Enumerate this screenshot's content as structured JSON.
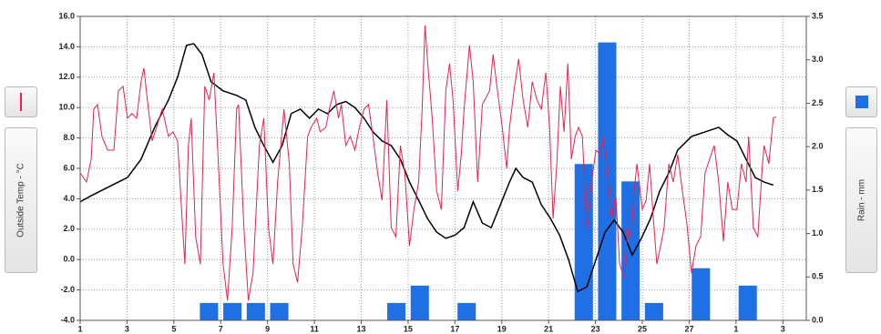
{
  "chart_data": {
    "type": "combo",
    "xlim": [
      0,
      31
    ],
    "xticks": [
      {
        "value": 0,
        "label": "1"
      },
      {
        "value": 2,
        "label": "3"
      },
      {
        "value": 4,
        "label": "5"
      },
      {
        "value": 6,
        "label": "7"
      },
      {
        "value": 8,
        "label": "9"
      },
      {
        "value": 10,
        "label": "11"
      },
      {
        "value": 12,
        "label": "13"
      },
      {
        "value": 14,
        "label": "15"
      },
      {
        "value": 16,
        "label": "17"
      },
      {
        "value": 18,
        "label": "19"
      },
      {
        "value": 20,
        "label": "21"
      },
      {
        "value": 22,
        "label": "23"
      },
      {
        "value": 24,
        "label": "25"
      },
      {
        "value": 26,
        "label": "27"
      },
      {
        "value": 28,
        "label": "1"
      },
      {
        "value": 30,
        "label": "3"
      }
    ],
    "ylim": [
      -4,
      16
    ],
    "yticks": [
      {
        "value": -4,
        "label": "-4.0"
      },
      {
        "value": -2,
        "label": "-2.0"
      },
      {
        "value": 0,
        "label": "0.0"
      },
      {
        "value": 2,
        "label": "2.0"
      },
      {
        "value": 4,
        "label": "4.0"
      },
      {
        "value": 6,
        "label": "6.0"
      },
      {
        "value": 8,
        "label": "8.0"
      },
      {
        "value": 10,
        "label": "10.0"
      },
      {
        "value": 12,
        "label": "12.0"
      },
      {
        "value": 14,
        "label": "14.0"
      },
      {
        "value": 16,
        "label": "16.0"
      }
    ],
    "y2lim": [
      0,
      3.5
    ],
    "y2ticks": [
      {
        "value": 0,
        "label": "0.0"
      },
      {
        "value": 0.5,
        "label": "0.5"
      },
      {
        "value": 1,
        "label": "1.0"
      },
      {
        "value": 1.5,
        "label": "1.5"
      },
      {
        "value": 2,
        "label": "2.0"
      },
      {
        "value": 2.5,
        "label": "2.5"
      },
      {
        "value": 3,
        "label": "3.0"
      },
      {
        "value": 3.5,
        "label": "3.5"
      }
    ],
    "grid": true,
    "series": [
      {
        "name": "Rain - mm",
        "type": "bar",
        "axis": "y2",
        "color": "#1f6fe5",
        "x": [
          5.5,
          6.5,
          7.5,
          8.5,
          13.5,
          14.5,
          16.5,
          21.5,
          22.5,
          23.5,
          24.5,
          26.5,
          28.5
        ],
        "values": [
          0.2,
          0.2,
          0.2,
          0.2,
          0.2,
          0.4,
          0.2,
          1.8,
          3.2,
          1.6,
          0.2,
          0.6,
          0.4
        ]
      },
      {
        "type": "line",
        "axis": "y",
        "color": "#000000",
        "x": [
          0,
          0.47,
          1.24,
          2.02,
          2.6,
          3.18,
          3.77,
          4.16,
          4.54,
          4.85,
          5.2,
          5.59,
          6.1,
          6.68,
          7.07,
          7.46,
          7.84,
          8.23,
          8.62,
          9.01,
          9.4,
          9.79,
          10.17,
          10.56,
          10.95,
          11.34,
          11.73,
          12.12,
          12.5,
          12.89,
          13.28,
          13.67,
          14.06,
          14.45,
          14.83,
          15.22,
          15.61,
          16,
          16.39,
          16.78,
          17.17,
          17.55,
          17.94,
          18.33,
          18.6,
          18.91,
          19.3,
          19.69,
          20.08,
          20.47,
          20.85,
          21.24,
          21.63,
          22.02,
          22.41,
          22.8,
          23.18,
          23.57,
          23.96,
          24.35,
          24.74,
          25.13,
          25.51,
          26.1,
          26.68,
          27.26,
          27.65,
          28.04,
          28.43,
          28.82,
          29.2,
          29.59
        ],
        "values": [
          3.8,
          4.2,
          4.8,
          5.4,
          6.6,
          8.7,
          10.5,
          12.0,
          14.1,
          14.2,
          13.5,
          11.7,
          11.1,
          10.8,
          10.5,
          8.7,
          7.5,
          6.4,
          7.5,
          9.6,
          9.9,
          9.3,
          9.9,
          9.6,
          10.2,
          10.4,
          10.0,
          9.3,
          8.4,
          7.8,
          7.5,
          6.6,
          5.1,
          3.9,
          2.7,
          1.8,
          1.4,
          1.6,
          2.1,
          3.8,
          2.4,
          2.1,
          3.6,
          5.1,
          6.0,
          5.4,
          5.1,
          3.6,
          2.7,
          1.6,
          0.0,
          -2.1,
          -1.8,
          0.0,
          1.8,
          2.6,
          1.8,
          0.3,
          1.4,
          2.7,
          4.5,
          5.7,
          7.2,
          8.1,
          8.4,
          8.7,
          8.2,
          7.8,
          6.6,
          5.4,
          5.1,
          4.9
        ]
      },
      {
        "name": "Outside Temp - °C",
        "type": "line",
        "axis": "y",
        "color": "#ee1f4e",
        "x": [
          0,
          0.27,
          0.47,
          0.58,
          0.74,
          0.93,
          1.17,
          1.44,
          1.63,
          1.83,
          2.02,
          2.21,
          2.41,
          2.6,
          2.72,
          2.87,
          3.07,
          3.26,
          3.5,
          3.77,
          3.96,
          4.16,
          4.35,
          4.47,
          4.62,
          4.74,
          4.93,
          5.13,
          5.32,
          5.51,
          5.71,
          5.9,
          6.1,
          6.29,
          6.49,
          6.68,
          6.76,
          6.99,
          7.18,
          7.38,
          7.65,
          7.84,
          8.04,
          8.23,
          8.43,
          8.7,
          8.93,
          9.09,
          9.28,
          9.48,
          9.71,
          9.86,
          10.1,
          10.25,
          10.49,
          10.64,
          10.83,
          11.03,
          11.15,
          11.34,
          11.53,
          11.73,
          11.92,
          12.12,
          12.31,
          12.5,
          12.7,
          12.89,
          13.09,
          13.28,
          13.48,
          13.67,
          13.86,
          14.06,
          14.25,
          14.45,
          14.6,
          14.72,
          14.87,
          15.03,
          15.22,
          15.42,
          15.61,
          15.77,
          15.92,
          16.12,
          16.27,
          16.39,
          16.62,
          16.78,
          16.97,
          17.17,
          17.48,
          17.63,
          17.79,
          18.02,
          18.21,
          18.33,
          18.52,
          18.72,
          18.91,
          19.11,
          19.3,
          19.5,
          19.69,
          19.88,
          20.04,
          20.19,
          20.35,
          20.5,
          20.66,
          20.82,
          20.97,
          21.13,
          21.28,
          21.44,
          21.63,
          21.83,
          22.02,
          22.21,
          22.33,
          22.49,
          22.68,
          22.87,
          23.03,
          23.22,
          23.38,
          23.53,
          23.65,
          23.77,
          24.0,
          24.16,
          24.31,
          24.47,
          24.62,
          24.78,
          24.93,
          25.13,
          25.32,
          25.51,
          25.71,
          25.9,
          26.1,
          26.29,
          26.49,
          26.68,
          26.87,
          27.07,
          27.26,
          27.46,
          27.65,
          27.84,
          28.04,
          28.23,
          28.43,
          28.54,
          28.74,
          28.93,
          29.13,
          29.2,
          29.4,
          29.59,
          29.71
        ],
        "values": [
          5.7,
          5.1,
          6.6,
          9.9,
          10.2,
          8.1,
          7.2,
          7.2,
          11.1,
          11.4,
          9.3,
          9.6,
          9.3,
          11.7,
          12.6,
          10.5,
          7.8,
          8.7,
          9.9,
          8.1,
          8.4,
          7.8,
          2.7,
          -0.3,
          7.5,
          9.3,
          1.5,
          -0.3,
          11.4,
          10.5,
          12.3,
          6.3,
          -0.3,
          -2.7,
          2.1,
          9.9,
          10.2,
          2.1,
          -2.7,
          -0.9,
          7.5,
          9.3,
          2.1,
          -0.3,
          5.1,
          9.9,
          6.3,
          -0.3,
          -1.5,
          2.1,
          8.1,
          8.7,
          9.3,
          8.4,
          8.7,
          9.9,
          11.1,
          9.3,
          10.2,
          7.5,
          8.1,
          7.2,
          8.7,
          9.9,
          10.2,
          8.1,
          5.7,
          3.9,
          10.5,
          2.1,
          1.5,
          7.5,
          5.7,
          0.9,
          3.3,
          5.1,
          9.9,
          15.4,
          12.3,
          9.3,
          4.5,
          3.3,
          11.1,
          12.9,
          10.5,
          4.5,
          6.9,
          9.9,
          14.1,
          11.7,
          5.1,
          10.2,
          11.1,
          13.5,
          11.4,
          8.7,
          6.0,
          8.7,
          11.1,
          13.2,
          10.5,
          8.7,
          11.7,
          10.5,
          9.9,
          12.3,
          8.7,
          2.7,
          6.3,
          11.4,
          8.4,
          12.9,
          6.6,
          8.1,
          8.7,
          8.1,
          2.1,
          5.1,
          7.2,
          6.9,
          8.1,
          6.0,
          2.7,
          4.2,
          -0.3,
          -1.2,
          2.1,
          1.5,
          4.5,
          6.3,
          3.3,
          3.9,
          6.3,
          2.7,
          -0.3,
          0.9,
          2.1,
          6.3,
          5.1,
          6.9,
          4.5,
          2.4,
          -0.9,
          0.9,
          1.5,
          5.7,
          6.6,
          7.5,
          5.1,
          1.2,
          5.1,
          3.3,
          3.3,
          6.3,
          5.1,
          8.1,
          2.1,
          1.5,
          6.3,
          7.5,
          6.3,
          9.3,
          9.4
        ]
      }
    ]
  }
}
